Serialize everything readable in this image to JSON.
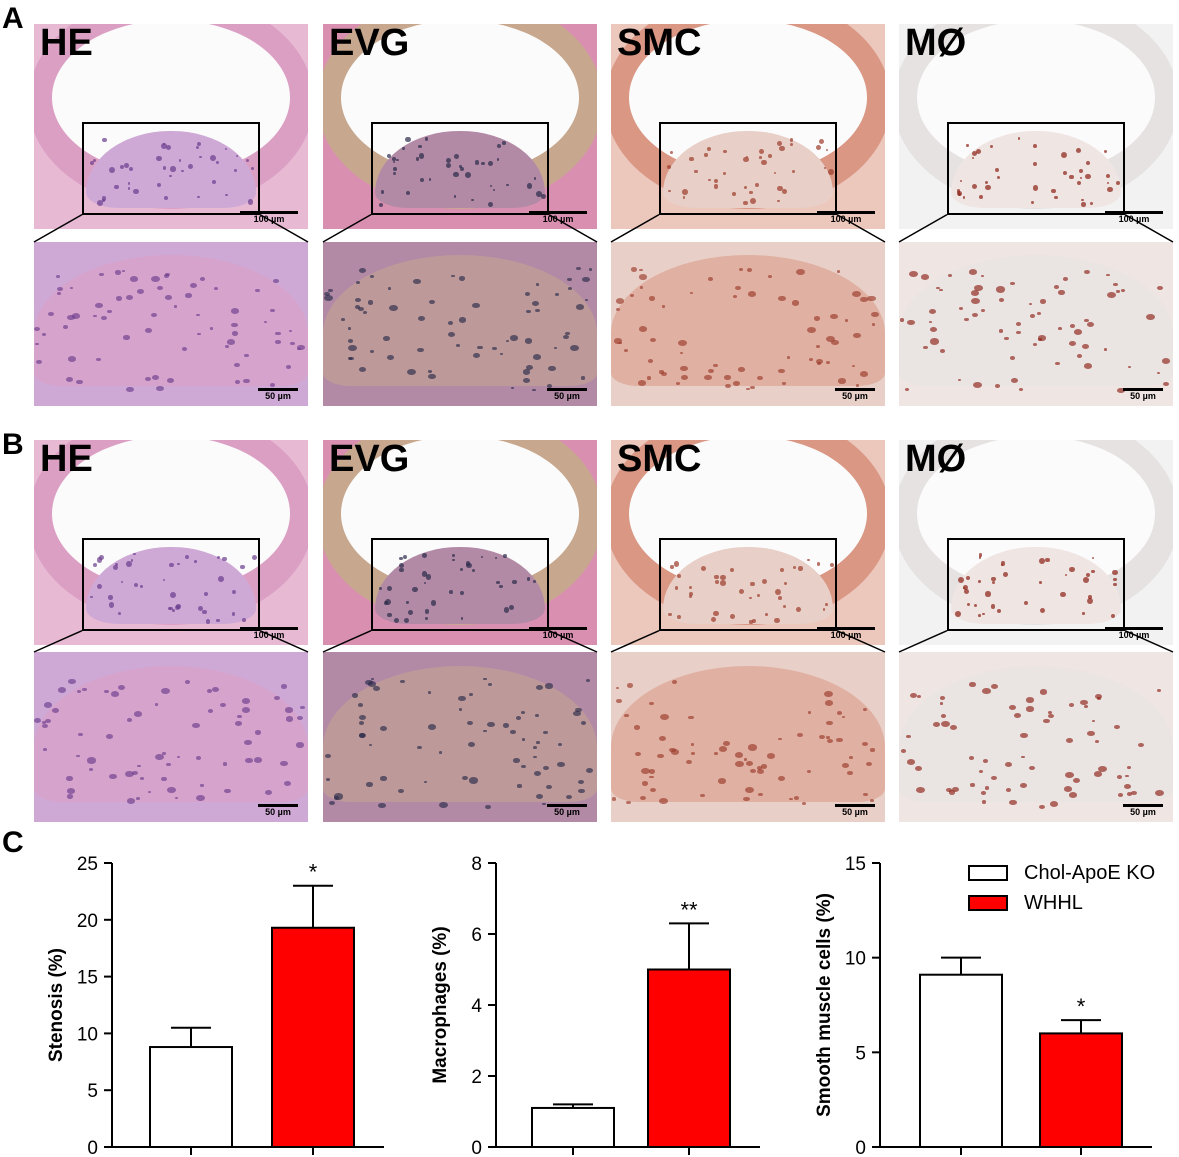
{
  "panels": {
    "A": {
      "letter": "A",
      "tiles": [
        {
          "label": "HE",
          "scale_top": "100 µm",
          "scale_bottom": "50 µm",
          "stain": "he"
        },
        {
          "label": "EVG",
          "scale_top": "100 µm",
          "scale_bottom": "50 µm",
          "stain": "evg"
        },
        {
          "label": "SMC",
          "scale_top": "100 µm",
          "scale_bottom": "50 µm",
          "stain": "smc"
        },
        {
          "label": "MØ",
          "scale_top": "100 µm",
          "scale_bottom": "50 µm",
          "stain": "mac"
        }
      ]
    },
    "B": {
      "letter": "B",
      "tiles": [
        {
          "label": "HE",
          "scale_top": "100 µm",
          "scale_bottom": "50 µm",
          "stain": "he"
        },
        {
          "label": "EVG",
          "scale_top": "100 µm",
          "scale_bottom": "50 µm",
          "stain": "evg"
        },
        {
          "label": "SMC",
          "scale_top": "100 µm",
          "scale_bottom": "50 µm",
          "stain": "smc"
        },
        {
          "label": "MØ",
          "scale_top": "100 µm",
          "scale_bottom": "50 µm",
          "stain": "mac"
        }
      ]
    },
    "C": {
      "letter": "C"
    }
  },
  "stain_colors": {
    "he": {
      "bg": "#e7b9d3",
      "wall": "#dc9fc4",
      "plaque": "#cfa9d6",
      "dot": "#6a3c8c"
    },
    "evg": {
      "bg": "#d98fb0",
      "wall": "#c7a88e",
      "plaque": "#b28aa6",
      "dot": "#2a2a4a"
    },
    "smc": {
      "bg": "#ecc7bc",
      "wall": "#d99784",
      "plaque": "#e8cfc8",
      "dot": "#9b3a2a"
    },
    "mac": {
      "bg": "#f2f2f2",
      "wall": "#e6e2e2",
      "plaque": "#efe6e4",
      "dot": "#8c1f14"
    }
  },
  "legend": {
    "items": [
      {
        "name": "Chol-ApoE KO",
        "color": "#ffffff"
      },
      {
        "name": "WHHL",
        "color": "#ff0000"
      }
    ]
  },
  "chart_data": [
    {
      "type": "bar",
      "categories": [
        "Chol-ApoE KO",
        "WHHL"
      ],
      "values": [
        8.8,
        19.3
      ],
      "errors": [
        1.7,
        3.7
      ],
      "significance": [
        "",
        "*"
      ],
      "ylabel": "Stenosis (%)",
      "ylim": [
        0,
        25
      ],
      "yticks": [
        0,
        5,
        10,
        15,
        20,
        25
      ],
      "colors": [
        "#ffffff",
        "#ff0000"
      ]
    },
    {
      "type": "bar",
      "categories": [
        "Chol-ApoE KO",
        "WHHL"
      ],
      "values": [
        1.1,
        5.0
      ],
      "errors": [
        0.1,
        1.3
      ],
      "significance": [
        "",
        "**"
      ],
      "ylabel": "Macrophages (%)",
      "ylim": [
        0,
        8
      ],
      "yticks": [
        0,
        2,
        4,
        6,
        8
      ],
      "colors": [
        "#ffffff",
        "#ff0000"
      ]
    },
    {
      "type": "bar",
      "categories": [
        "Chol-ApoE KO",
        "WHHL"
      ],
      "values": [
        9.1,
        6.0
      ],
      "errors": [
        0.9,
        0.7
      ],
      "significance": [
        "",
        "*"
      ],
      "ylabel": "Smooth muscle cells (%)",
      "ylim": [
        0,
        15
      ],
      "yticks": [
        0,
        5,
        10,
        15
      ],
      "colors": [
        "#ffffff",
        "#ff0000"
      ]
    }
  ]
}
